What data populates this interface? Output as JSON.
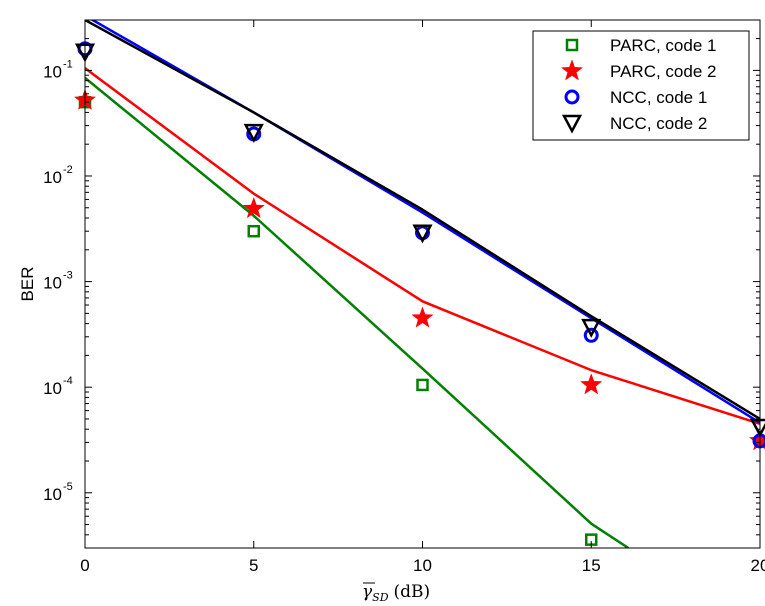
{
  "chart_data": {
    "type": "line",
    "title": "",
    "xlabel": "γ̅_SD (dB)",
    "xlabel_main": "γ",
    "xlabel_sub": "SD",
    "xlabel_unit": "(dB)",
    "ylabel": "BER",
    "xlim": [
      0,
      20
    ],
    "ylim": [
      3e-06,
      0.3
    ],
    "yscale": "log",
    "grid": false,
    "legend_position": "top-right",
    "x_ticks": [
      0,
      5,
      10,
      15,
      20
    ],
    "x_tick_labels": [
      "0",
      "5",
      "10",
      "15",
      "20"
    ],
    "y_ticks": [
      1e-05,
      0.0001,
      0.001,
      0.01,
      0.1
    ],
    "y_tick_base": "10",
    "y_tick_exponents": [
      "-5",
      "-4",
      "-3",
      "-2",
      "-1"
    ],
    "series": [
      {
        "name": "PARC, code 1",
        "color": "#008000",
        "marker": "square",
        "markers": {
          "x": [
            0,
            5,
            10,
            15
          ],
          "y": [
            0.05,
            0.003,
            0.000105,
            3.6e-06
          ]
        },
        "curve": {
          "x": [
            0,
            5,
            10,
            15,
            16.1
          ],
          "y": [
            0.085,
            0.0042,
            0.00015,
            5.1e-06,
            3e-06
          ]
        }
      },
      {
        "name": "PARC, code 2",
        "color": "#ff0000",
        "marker": "star",
        "markers": {
          "x": [
            0,
            5,
            10,
            15,
            20
          ],
          "y": [
            0.052,
            0.0049,
            0.00045,
            0.000105,
            3.1e-05
          ]
        },
        "curve": {
          "x": [
            0,
            5,
            10,
            15,
            20
          ],
          "y": [
            0.105,
            0.0068,
            0.00065,
            0.000145,
            4.5e-05
          ]
        }
      },
      {
        "name": "NCC, code 1",
        "color": "#0000ff",
        "marker": "circle",
        "markers": {
          "x": [
            0,
            5,
            10,
            15,
            20
          ],
          "y": [
            0.16,
            0.025,
            0.0029,
            0.00031,
            3.1e-05
          ]
        },
        "curve": {
          "x": [
            0,
            5,
            10,
            15,
            20
          ],
          "y": [
            0.33,
            0.04,
            0.0045,
            0.00045,
            4.6e-05
          ]
        }
      },
      {
        "name": "NCC, code 2",
        "color": "#000000",
        "marker": "triangle-down",
        "markers": {
          "x": [
            0,
            5,
            10,
            15,
            20
          ],
          "y": [
            0.15,
            0.026,
            0.0029,
            0.00037,
            4.2e-05
          ]
        },
        "curve": {
          "x": [
            0,
            5,
            10,
            15,
            20
          ],
          "y": [
            0.3,
            0.04,
            0.0048,
            0.00047,
            5e-05
          ]
        }
      }
    ]
  }
}
